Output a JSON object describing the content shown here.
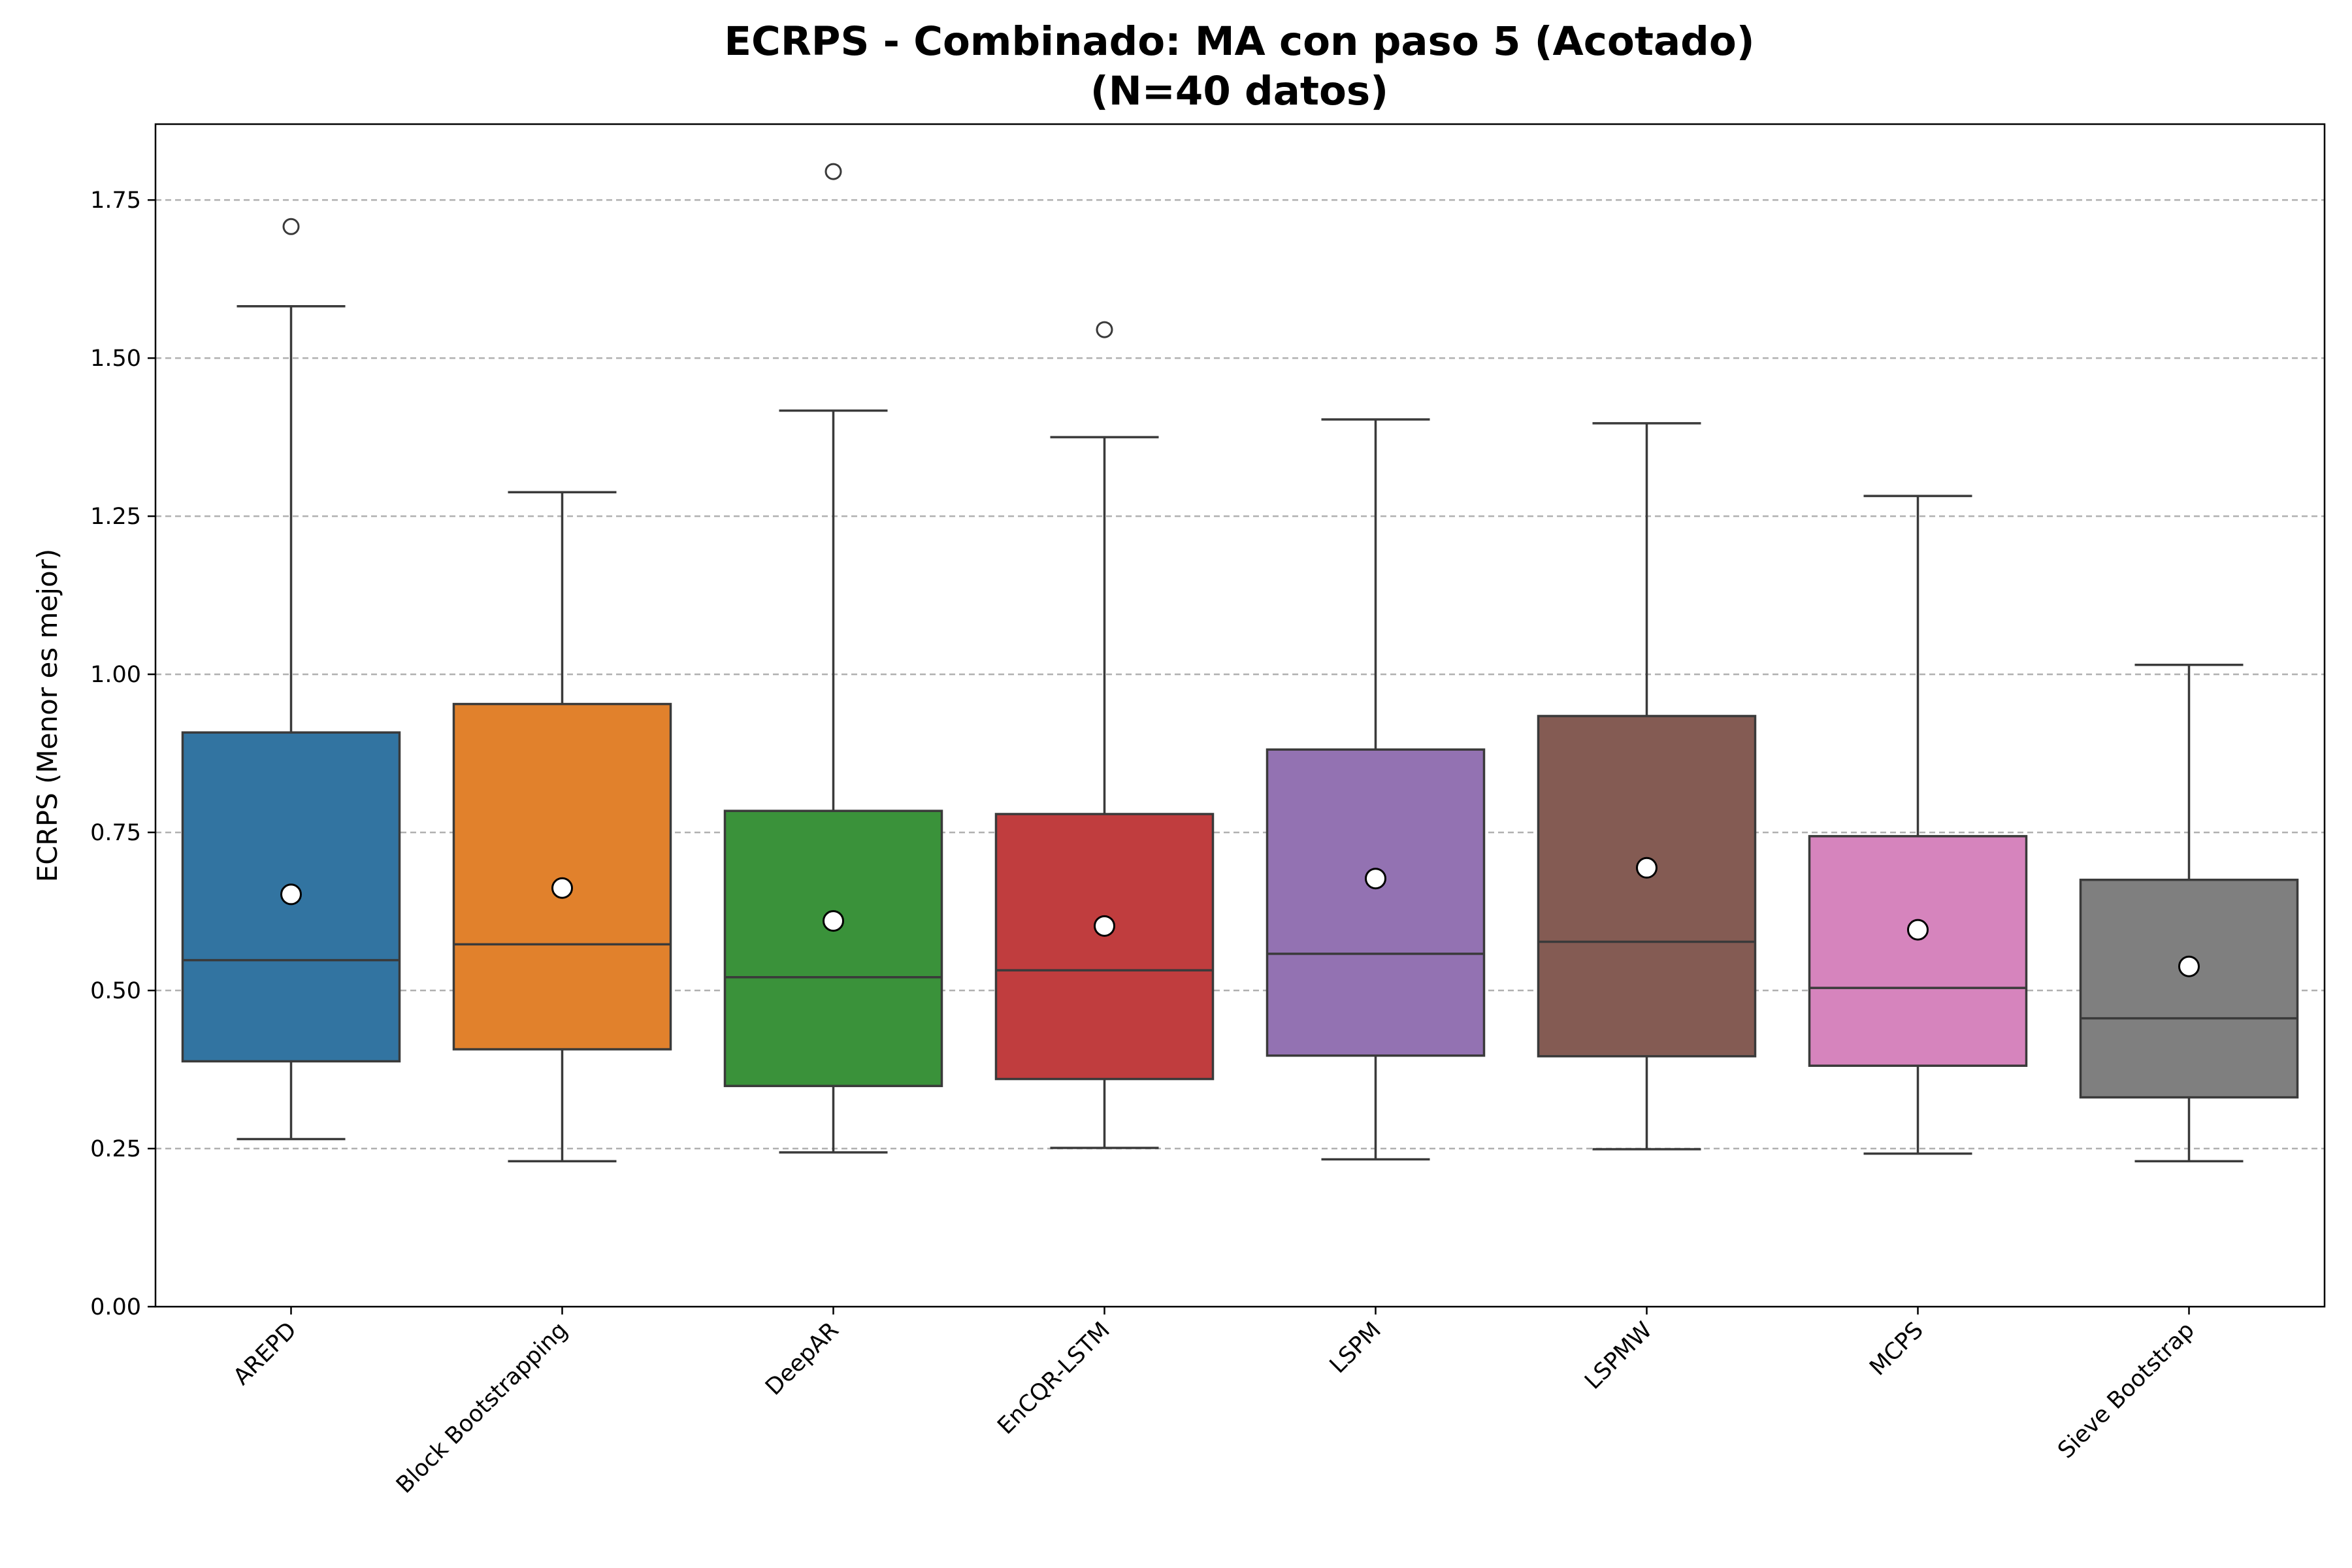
{
  "chart_data": {
    "type": "box",
    "title": "ECRPS - Combinado: MA con paso 5 (Acotado)",
    "subtitle": "(N=40 datos)",
    "xlabel": "",
    "ylabel": "ECRPS (Menor es mejor)",
    "ylim": [
      0,
      1.87
    ],
    "yticks": [
      "0.00",
      "0.25",
      "0.50",
      "0.75",
      "1.00",
      "1.25",
      "1.50",
      "1.75"
    ],
    "grid": "y-dashed",
    "categories": [
      "AREPD",
      "Block Bootstrapping",
      "DeepAR",
      "EnCQR-LSTM",
      "LSPM",
      "LSPMW",
      "MCPS",
      "Sieve Bootstrap"
    ],
    "colors": [
      "#3274a1",
      "#e1812c",
      "#3a923a",
      "#c03d3e",
      "#9372b2",
      "#845b53",
      "#d684bd",
      "#7f7f7f"
    ],
    "boxes": [
      {
        "whisker_low": 0.265,
        "q1": 0.388,
        "median": 0.548,
        "q3": 0.908,
        "whisker_high": 1.582,
        "mean": 0.652,
        "outliers": [
          1.708
        ]
      },
      {
        "whisker_low": 0.23,
        "q1": 0.407,
        "median": 0.573,
        "q3": 0.953,
        "whisker_high": 1.288,
        "mean": 0.662,
        "outliers": []
      },
      {
        "whisker_low": 0.244,
        "q1": 0.349,
        "median": 0.521,
        "q3": 0.784,
        "whisker_high": 1.417,
        "mean": 0.61,
        "outliers": [
          1.795
        ]
      },
      {
        "whisker_low": 0.251,
        "q1": 0.36,
        "median": 0.532,
        "q3": 0.779,
        "whisker_high": 1.375,
        "mean": 0.602,
        "outliers": [
          1.545
        ]
      },
      {
        "whisker_low": 0.233,
        "q1": 0.397,
        "median": 0.558,
        "q3": 0.881,
        "whisker_high": 1.403,
        "mean": 0.677,
        "outliers": []
      },
      {
        "whisker_low": 0.249,
        "q1": 0.396,
        "median": 0.577,
        "q3": 0.934,
        "whisker_high": 1.397,
        "mean": 0.694,
        "outliers": []
      },
      {
        "whisker_low": 0.242,
        "q1": 0.381,
        "median": 0.504,
        "q3": 0.744,
        "whisker_high": 1.282,
        "mean": 0.596,
        "outliers": []
      },
      {
        "whisker_low": 0.23,
        "q1": 0.331,
        "median": 0.456,
        "q3": 0.675,
        "whisker_high": 1.015,
        "mean": 0.538,
        "outliers": []
      }
    ]
  }
}
